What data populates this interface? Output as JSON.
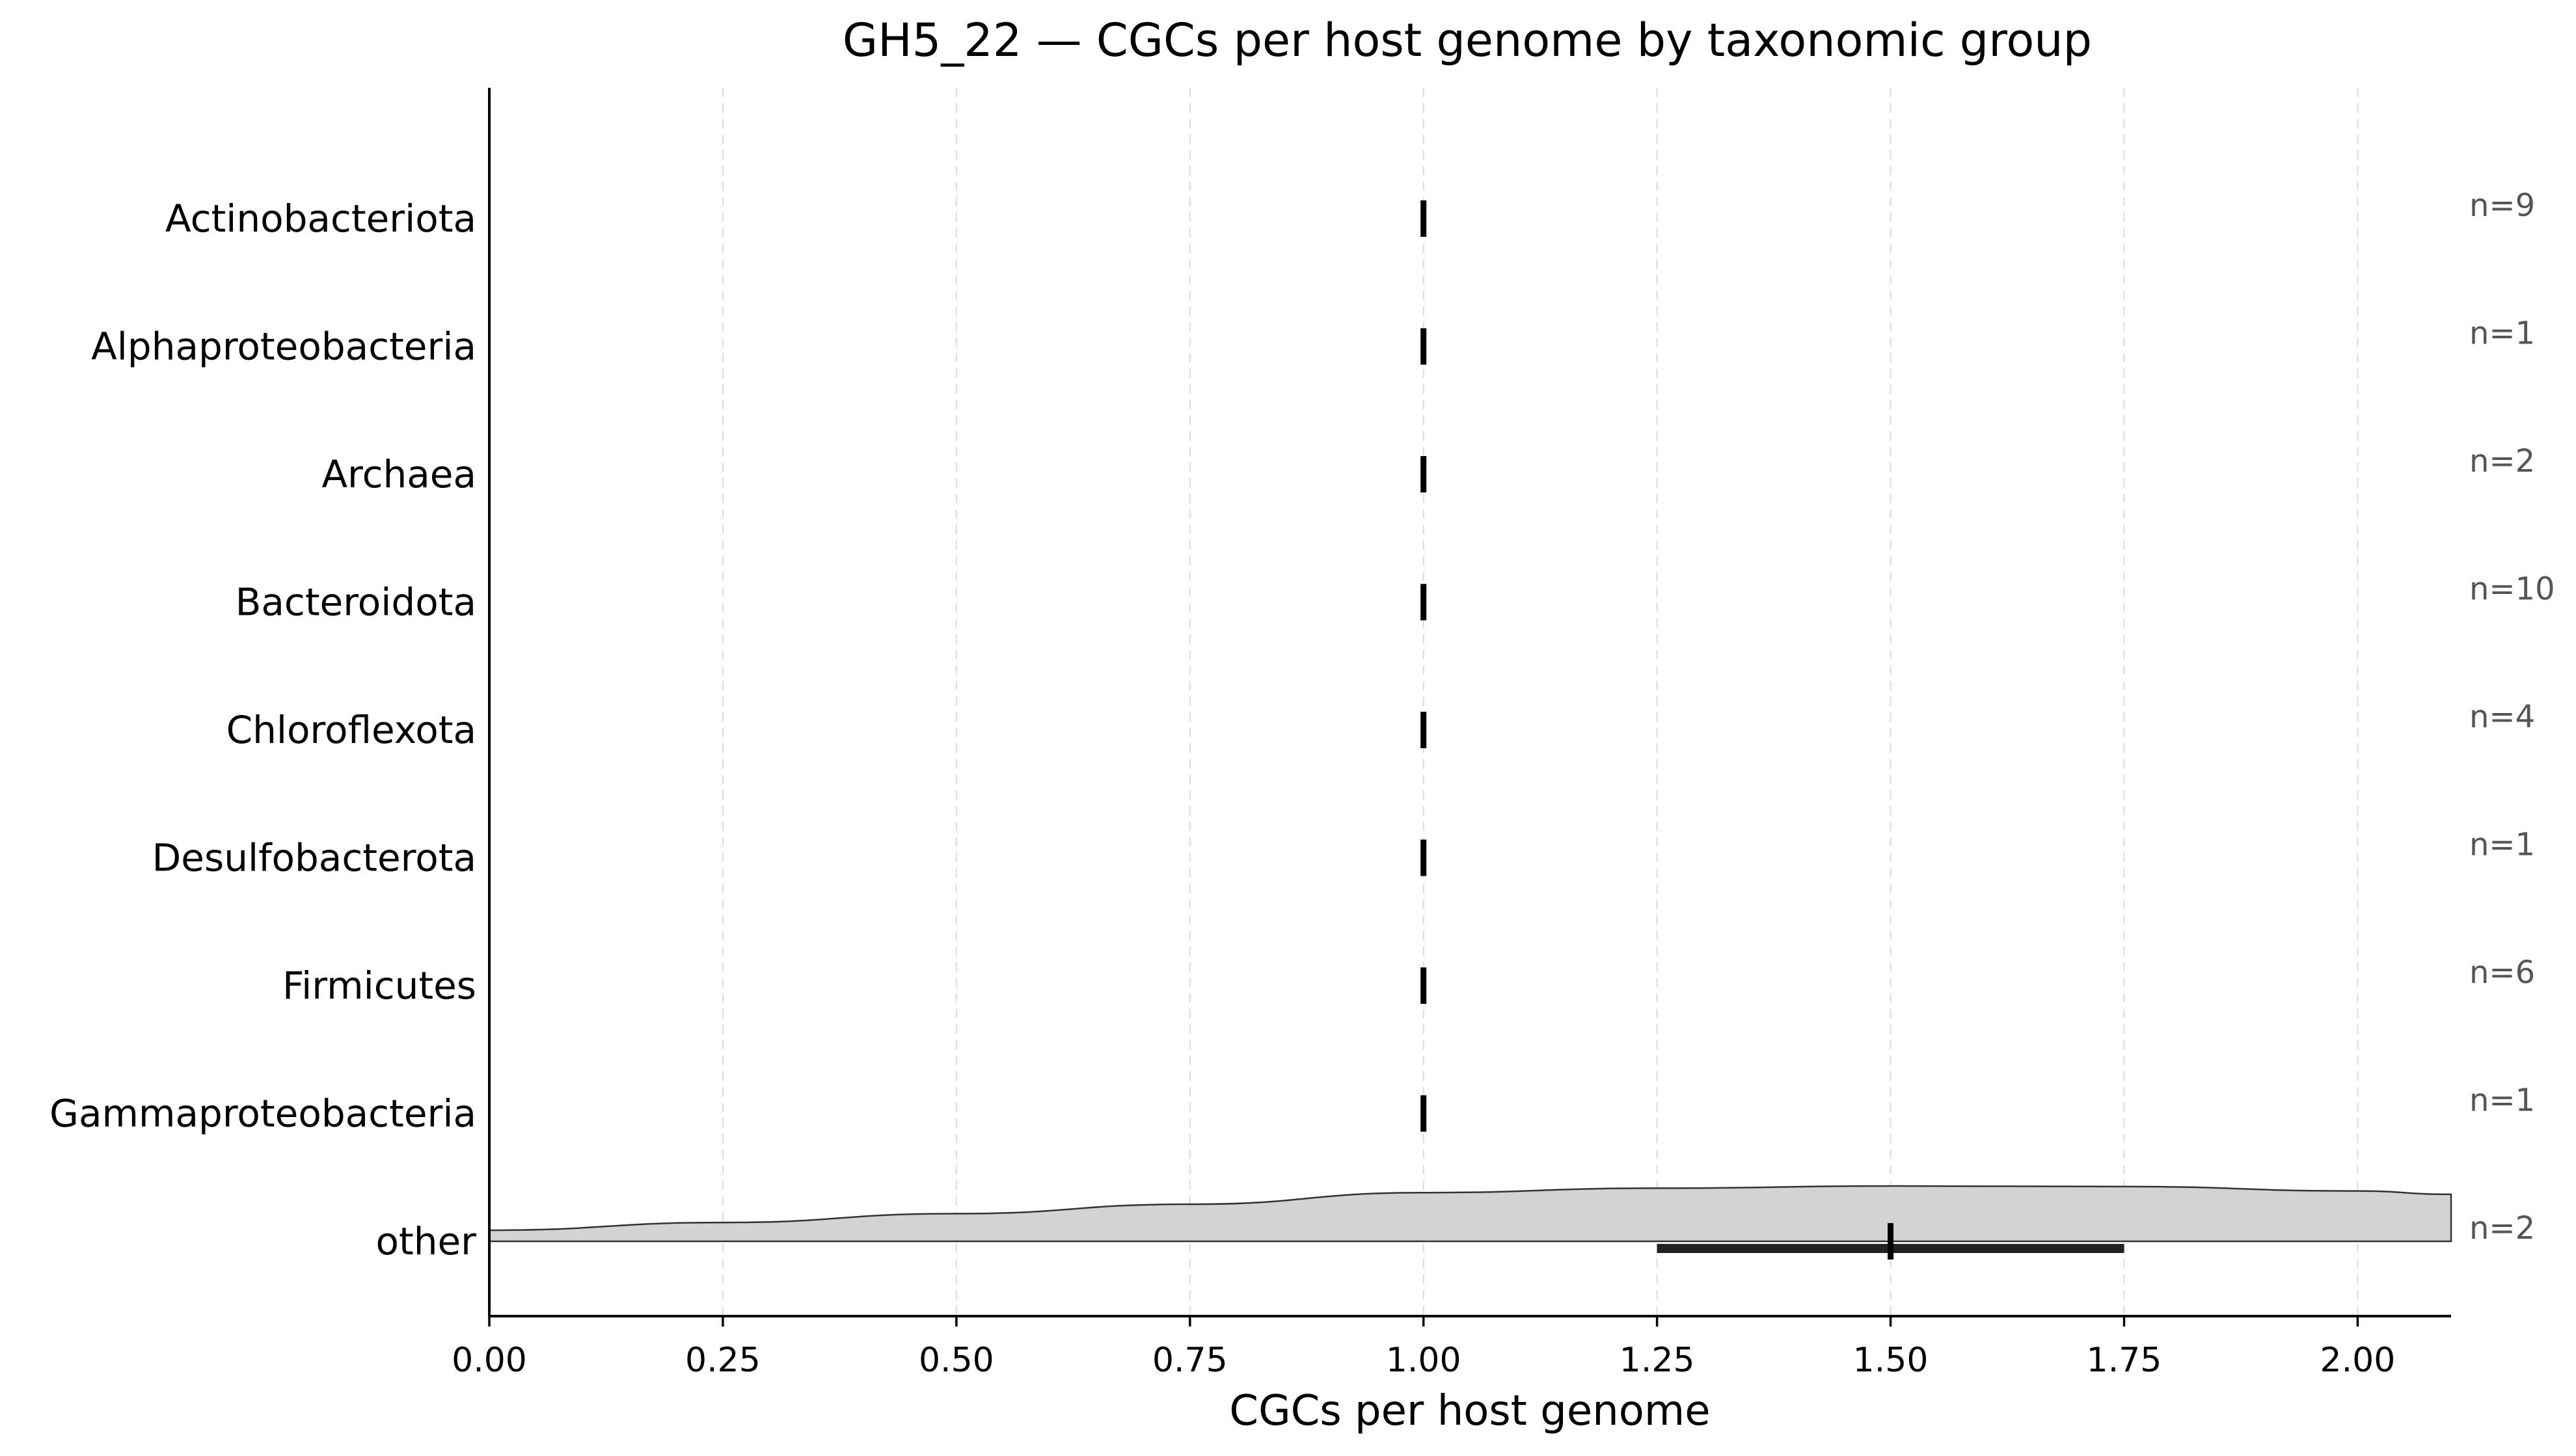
{
  "chart_data": {
    "type": "violin",
    "title": "GH5_22 — CGCs per host genome by taxonomic group",
    "xlabel": "CGCs per host genome",
    "ylabel": "",
    "xlim": [
      0.0,
      2.1
    ],
    "xticks": [
      0.0,
      0.25,
      0.5,
      0.75,
      1.0,
      1.25,
      1.5,
      1.75,
      2.0
    ],
    "xtick_labels": [
      "0.00",
      "0.25",
      "0.50",
      "0.75",
      "1.00",
      "1.25",
      "1.50",
      "1.75",
      "2.00"
    ],
    "grid": "vertical dashed",
    "categories": [
      "Actinobacteriota",
      "Alphaproteobacteria",
      "Archaea",
      "Bacteroidota",
      "Chloroflexota",
      "Desulfobacterota",
      "Firmicutes",
      "Gammaproteobacteria",
      "other"
    ],
    "counts": [
      "n=9",
      "n=1",
      "n=2",
      "n=10",
      "n=4",
      "n=1",
      "n=6",
      "n=1",
      "n=2"
    ],
    "medians": [
      1.0,
      1.0,
      1.0,
      1.0,
      1.0,
      1.0,
      1.0,
      1.0,
      1.5
    ],
    "iqr": [
      null,
      null,
      null,
      null,
      null,
      null,
      null,
      null,
      [
        1.25,
        1.75
      ]
    ],
    "distribution": {
      "category": "other",
      "x": [
        0.0,
        0.25,
        0.5,
        0.75,
        1.0,
        1.25,
        1.5,
        1.75,
        2.0,
        2.1
      ],
      "density": [
        0.2,
        0.34,
        0.5,
        0.67,
        0.88,
        0.96,
        1.0,
        0.99,
        0.91,
        0.85
      ]
    },
    "colors": {
      "violin_fill": "#d3d3d3",
      "violin_edge": "#333333",
      "median": "#000000",
      "iqr": "#222222",
      "count_text": "#555555"
    }
  }
}
